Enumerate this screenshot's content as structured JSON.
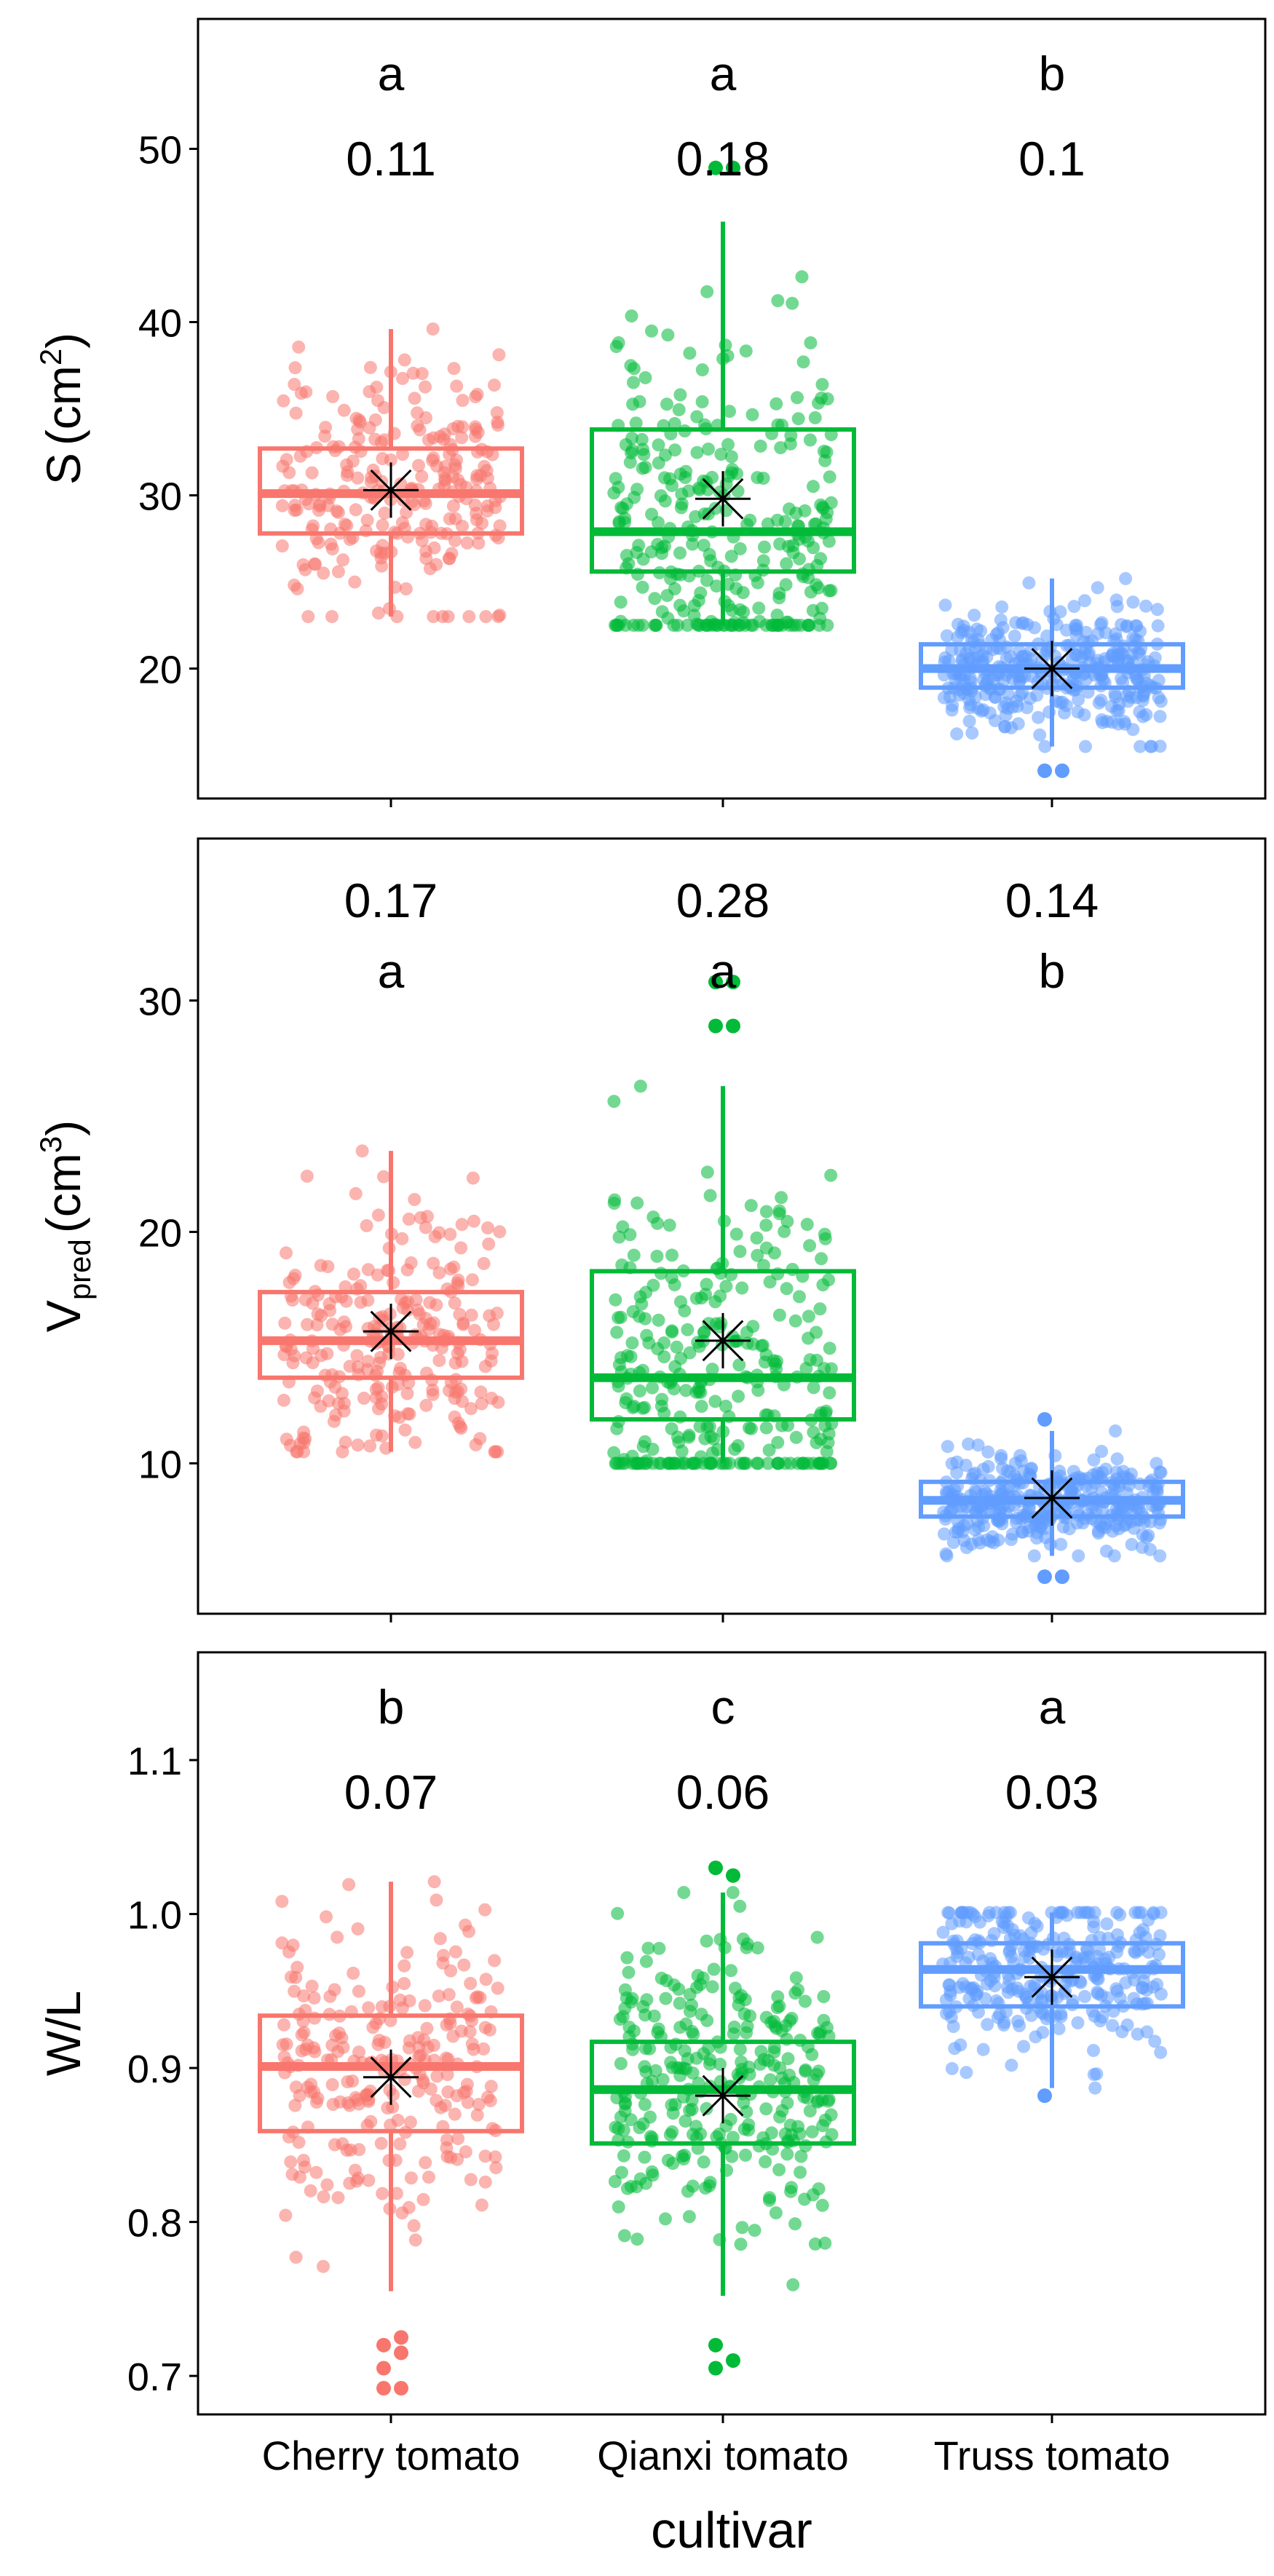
{
  "chart_data": {
    "type": "boxplot",
    "categories": [
      "Cherry tomato",
      "Qianxi tomato",
      "Truss tomato"
    ],
    "xlabel": "cultivar",
    "colors": {
      "Cherry tomato": "#F8766D",
      "Qianxi tomato": "#00BA38",
      "Truss tomato": "#619CFF"
    },
    "panels": [
      {
        "id": "S",
        "ylabel": "S (cm²)",
        "ylabel_main": "S",
        "ylabel_unit_base": "(cm",
        "ylabel_unit_sup": "2",
        "ylabel_unit_end": ")",
        "ylim": [
          12.5,
          57.5
        ],
        "yticks": [
          20,
          30,
          40,
          50
        ],
        "ytick_labels": [
          "20",
          "30",
          "40",
          "50"
        ],
        "annotations": {
          "letters": [
            "a",
            "a",
            "b"
          ],
          "cv": [
            "0.11",
            "0.18",
            "0.1"
          ],
          "order": "letter_top"
        },
        "boxes": [
          {
            "q1": 27.8,
            "median": 30.1,
            "q3": 32.7,
            "whisker_low": 23.0,
            "whisker_high": 39.6,
            "mean": 30.3,
            "n_points": 250,
            "outliers": []
          },
          {
            "q1": 25.6,
            "median": 27.9,
            "q3": 33.8,
            "whisker_low": 22.5,
            "whisker_high": 45.8,
            "mean": 29.8,
            "n_points": 300,
            "outliers": [
              48.9,
              48.9
            ]
          },
          {
            "q1": 18.9,
            "median": 20.0,
            "q3": 21.4,
            "whisker_low": 15.5,
            "whisker_high": 25.2,
            "mean": 20.0,
            "n_points": 350,
            "outliers": [
              14.1,
              14.1
            ]
          }
        ]
      },
      {
        "id": "V",
        "ylabel": "Vpred (cm³)",
        "ylabel_main": "V",
        "ylabel_sub": "pred",
        "ylabel_unit_base": "(cm",
        "ylabel_unit_sup": "3",
        "ylabel_unit_end": ")",
        "ylim": [
          3.5,
          37.0
        ],
        "yticks": [
          10,
          20,
          30
        ],
        "ytick_labels": [
          "10",
          "20",
          "30"
        ],
        "annotations": {
          "letters": [
            "a",
            "a",
            "b"
          ],
          "cv": [
            "0.17",
            "0.28",
            "0.14"
          ],
          "order": "cv_top"
        },
        "boxes": [
          {
            "q1": 13.7,
            "median": 15.3,
            "q3": 17.4,
            "whisker_low": 10.5,
            "whisker_high": 23.5,
            "mean": 15.7,
            "n_points": 250,
            "outliers": []
          },
          {
            "q1": 11.9,
            "median": 13.7,
            "q3": 18.3,
            "whisker_low": 10.0,
            "whisker_high": 26.3,
            "mean": 15.3,
            "n_points": 300,
            "outliers": [
              28.9,
              28.9,
              30.8,
              30.8
            ]
          },
          {
            "q1": 7.7,
            "median": 8.4,
            "q3": 9.2,
            "whisker_low": 6.0,
            "whisker_high": 11.4,
            "mean": 8.5,
            "n_points": 350,
            "outliers": [
              5.1,
              5.1,
              11.9
            ]
          }
        ]
      },
      {
        "id": "WL",
        "ylabel": "W/L",
        "ylim": [
          0.675,
          1.17
        ],
        "yticks": [
          0.7,
          0.8,
          0.9,
          1.0,
          1.1
        ],
        "ytick_labels": [
          "0.7",
          "0.8",
          "0.9",
          "1.0",
          "1.1"
        ],
        "annotations": {
          "letters": [
            "b",
            "c",
            "a"
          ],
          "cv": [
            "0.07",
            "0.06",
            "0.03"
          ],
          "order": "letter_top"
        },
        "boxes": [
          {
            "q1": 0.859,
            "median": 0.901,
            "q3": 0.934,
            "whisker_low": 0.755,
            "whisker_high": 1.021,
            "mean": 0.894,
            "n_points": 250,
            "outliers": [
              0.692,
              0.692,
              0.705,
              0.715,
              0.72,
              0.725
            ]
          },
          {
            "q1": 0.851,
            "median": 0.886,
            "q3": 0.917,
            "whisker_low": 0.752,
            "whisker_high": 1.014,
            "mean": 0.882,
            "n_points": 300,
            "outliers": [
              0.705,
              0.71,
              0.72,
              1.025,
              1.03
            ]
          },
          {
            "q1": 0.94,
            "median": 0.964,
            "q3": 0.981,
            "whisker_low": 0.887,
            "whisker_high": 1.001,
            "mean": 0.959,
            "n_points": 300,
            "outliers": [
              0.882
            ]
          }
        ]
      }
    ]
  }
}
